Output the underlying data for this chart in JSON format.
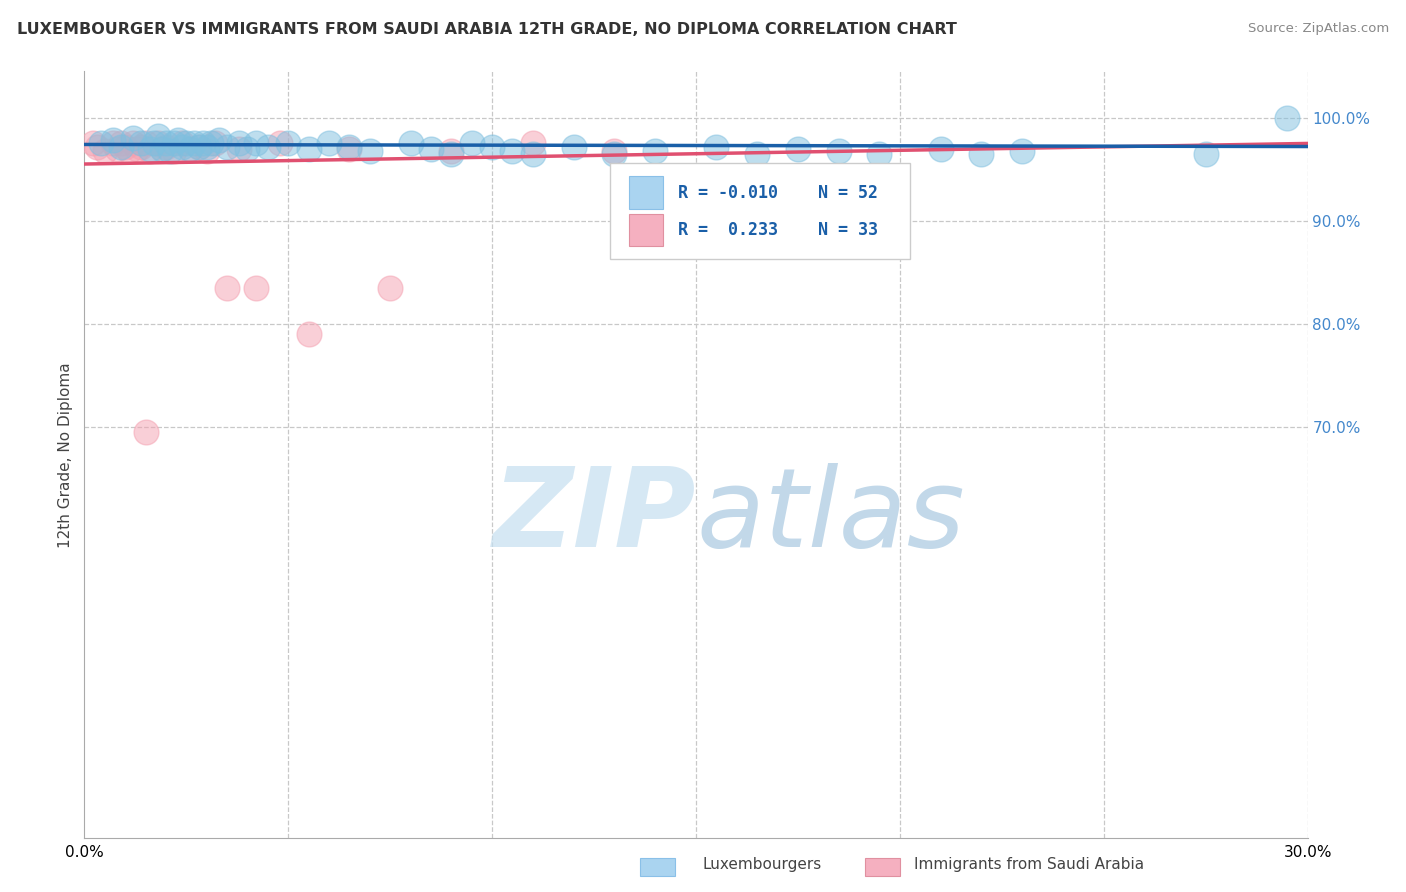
{
  "title": "LUXEMBOURGER VS IMMIGRANTS FROM SAUDI ARABIA 12TH GRADE, NO DIPLOMA CORRELATION CHART",
  "source": "Source: ZipAtlas.com",
  "ylabel": "12th Grade, No Diploma",
  "xlim": [
    0.0,
    0.3
  ],
  "ylim": [
    0.3,
    1.045
  ],
  "xticks": [
    0.0,
    0.05,
    0.1,
    0.15,
    0.2,
    0.25,
    0.3
  ],
  "yticks_right": [
    0.7,
    0.8,
    0.9,
    1.0
  ],
  "ytick_labels_right": [
    "70.0%",
    "80.0%",
    "90.0%",
    "100.0%"
  ],
  "blue_color": "#7fbfdf",
  "pink_color": "#f4a0b0",
  "blue_line_color": "#1a5fa8",
  "pink_line_color": "#e05070",
  "grid_color": "#c8c8c8",
  "right_label_color": "#4488cc",
  "blue_scatter_x": [
    0.004,
    0.007,
    0.009,
    0.012,
    0.014,
    0.016,
    0.017,
    0.018,
    0.019,
    0.02,
    0.021,
    0.022,
    0.023,
    0.024,
    0.025,
    0.026,
    0.027,
    0.028,
    0.029,
    0.03,
    0.031,
    0.033,
    0.035,
    0.038,
    0.04,
    0.042,
    0.045,
    0.05,
    0.055,
    0.06,
    0.065,
    0.07,
    0.08,
    0.085,
    0.09,
    0.095,
    0.1,
    0.105,
    0.11,
    0.12,
    0.13,
    0.14,
    0.155,
    0.165,
    0.175,
    0.185,
    0.195,
    0.21,
    0.22,
    0.23,
    0.275,
    0.295
  ],
  "blue_scatter_y": [
    0.975,
    0.978,
    0.972,
    0.98,
    0.975,
    0.97,
    0.975,
    0.982,
    0.97,
    0.975,
    0.968,
    0.975,
    0.978,
    0.972,
    0.975,
    0.97,
    0.975,
    0.972,
    0.975,
    0.972,
    0.975,
    0.978,
    0.972,
    0.975,
    0.97,
    0.975,
    0.972,
    0.975,
    0.97,
    0.975,
    0.972,
    0.968,
    0.975,
    0.97,
    0.965,
    0.975,
    0.972,
    0.968,
    0.965,
    0.972,
    0.965,
    0.968,
    0.972,
    0.965,
    0.97,
    0.968,
    0.965,
    0.97,
    0.965,
    0.968,
    0.965,
    1.0
  ],
  "pink_scatter_x": [
    0.002,
    0.003,
    0.005,
    0.007,
    0.008,
    0.009,
    0.01,
    0.011,
    0.012,
    0.013,
    0.014,
    0.015,
    0.016,
    0.018,
    0.019,
    0.02,
    0.022,
    0.024,
    0.026,
    0.028,
    0.03,
    0.032,
    0.035,
    0.038,
    0.042,
    0.048,
    0.055,
    0.065,
    0.075,
    0.09,
    0.11,
    0.13,
    0.015
  ],
  "pink_scatter_y": [
    0.975,
    0.972,
    0.968,
    0.975,
    0.97,
    0.975,
    0.972,
    0.968,
    0.975,
    0.97,
    0.972,
    0.975,
    0.968,
    0.975,
    0.97,
    0.972,
    0.968,
    0.975,
    0.97,
    0.972,
    0.968,
    0.975,
    0.835,
    0.97,
    0.835,
    0.975,
    0.79,
    0.97,
    0.835,
    0.968,
    0.975,
    0.968,
    0.695
  ],
  "blue_trendline_x": [
    0.0,
    0.3
  ],
  "blue_trendline_y": [
    0.974,
    0.972
  ],
  "pink_trendline_x": [
    0.0,
    0.3
  ],
  "pink_trendline_y": [
    0.955,
    0.975
  ]
}
